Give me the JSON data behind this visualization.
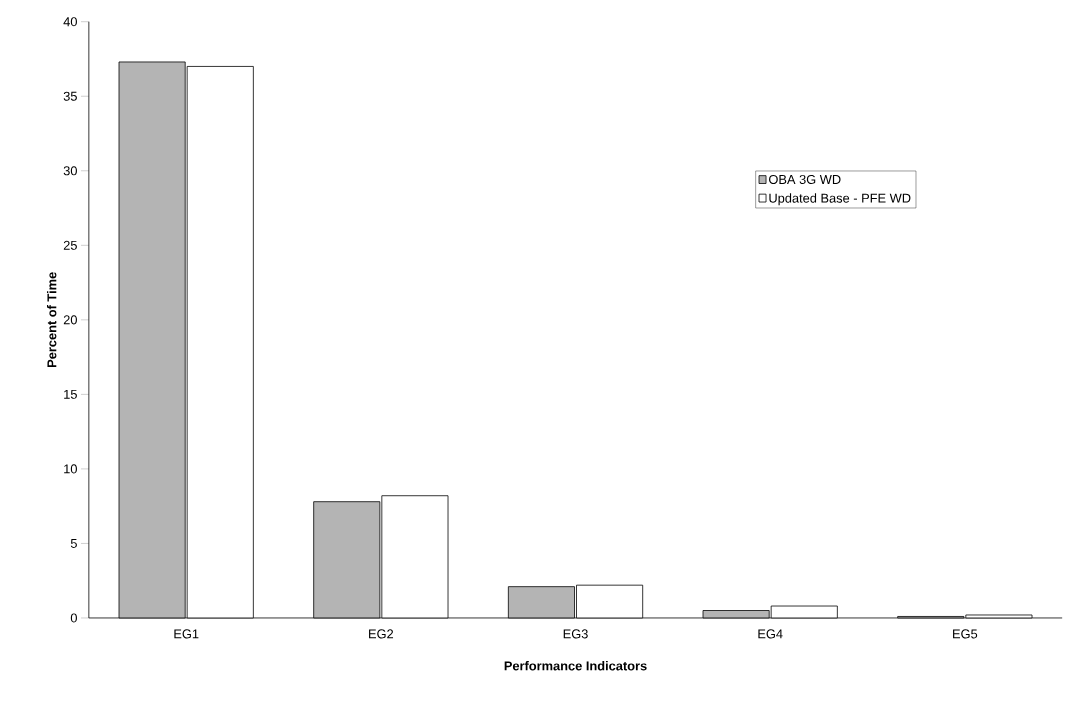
{
  "chart_data": {
    "type": "bar",
    "xlabel": "Performance Indicators",
    "ylabel": "Percent of Time",
    "categories": [
      "EG1",
      "EG2",
      "EG3",
      "EG4",
      "EG5"
    ],
    "series": [
      {
        "name": "OBA 3G WD",
        "color": "#b4b4b4",
        "values": [
          37.3,
          7.8,
          2.1,
          0.5,
          0.1
        ]
      },
      {
        "name": "Updated Base - PFE WD",
        "color": "#ffffff",
        "values": [
          37.0,
          8.2,
          2.2,
          0.8,
          0.2
        ]
      }
    ],
    "ylim": [
      0,
      40
    ],
    "yticks": [
      0,
      5,
      10,
      15,
      20,
      25,
      30,
      35,
      40
    ],
    "grid": false,
    "legend": "top right"
  }
}
